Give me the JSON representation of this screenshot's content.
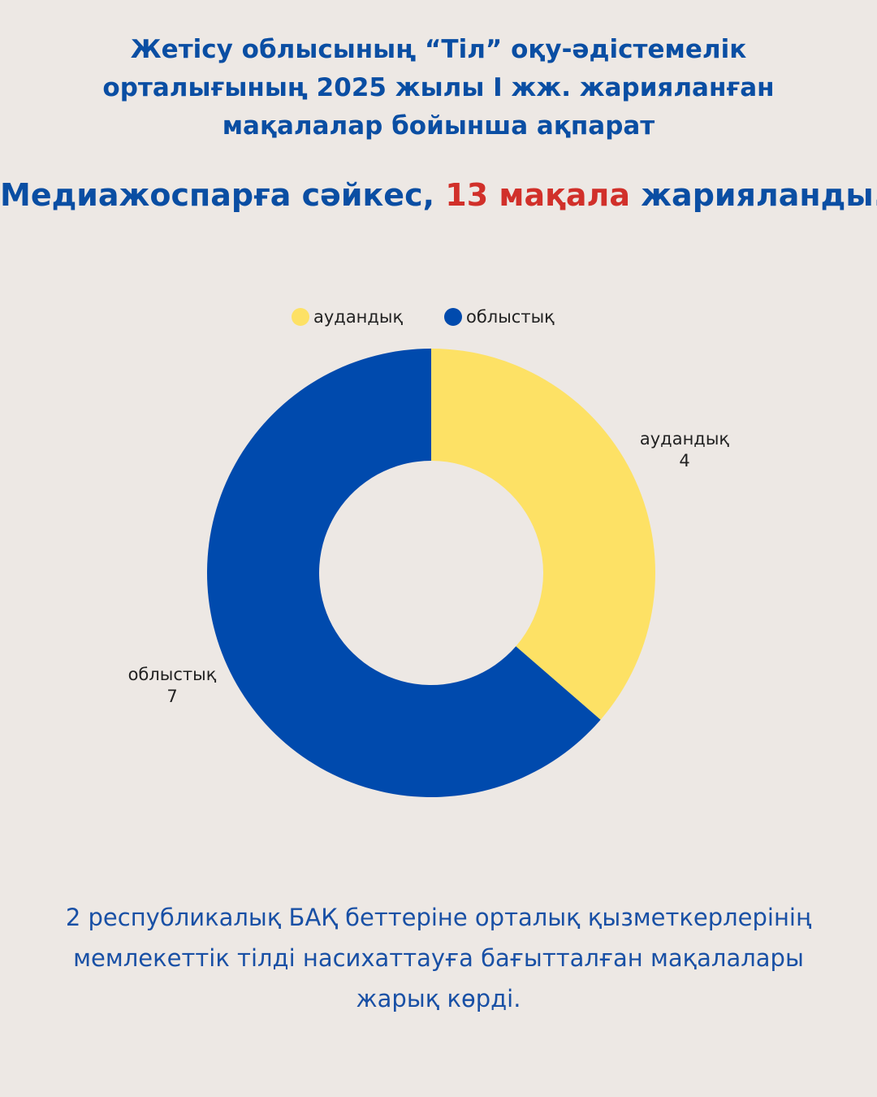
{
  "header": {
    "title_lines": [
      "Жетісу облысының “Тіл” оқу-әдістемелік",
      "орталығының 2025 жылы I жж. жарияланған",
      "мақалалар бойынша ақпарат"
    ],
    "headline": {
      "part1": "Медиажоспарға сәйкес, ",
      "highlight": "13 мақала",
      "part2": " жарияланды."
    }
  },
  "chart_data": {
    "type": "pie",
    "donut": true,
    "title": "",
    "legend_position": "top-center",
    "slices": [
      {
        "label": "аудандық",
        "value": 4,
        "color": "#fde165"
      },
      {
        "label": "облыстық",
        "value": 7,
        "color": "#004aad"
      }
    ]
  },
  "footer": {
    "lines": [
      "2 республикалық БАҚ беттеріне орталық қызметкерлерінің",
      "мемлекеттік тілді насихаттауға бағытталған мақалалары",
      "жарық көрді."
    ]
  }
}
